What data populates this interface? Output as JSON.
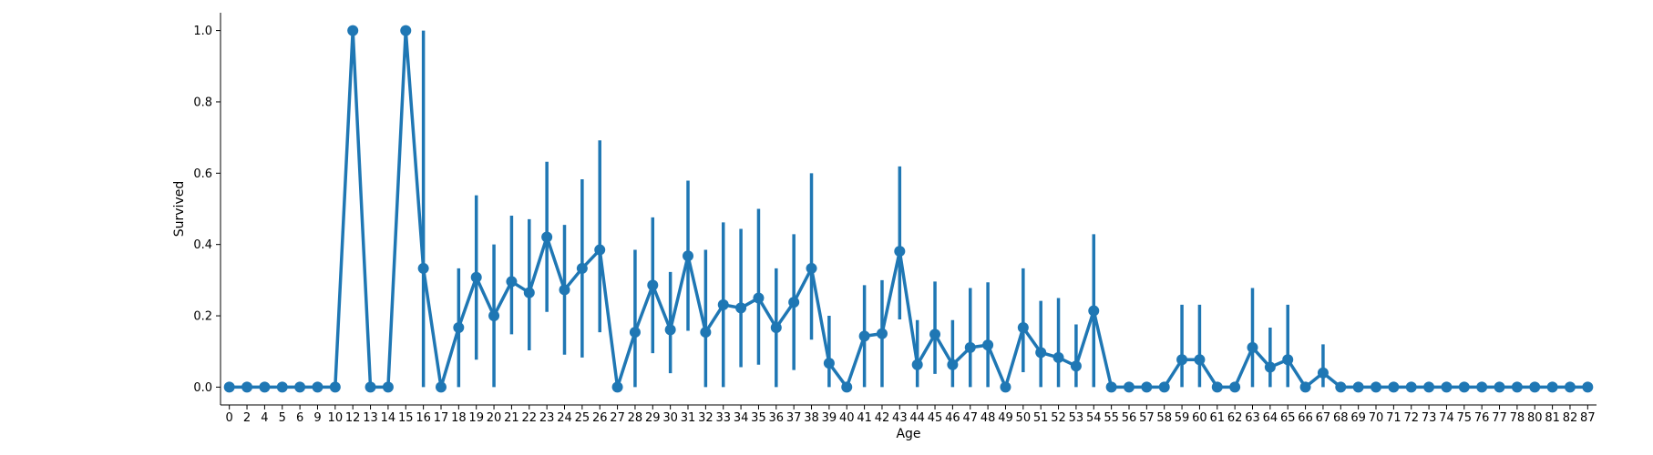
{
  "chart_data": {
    "type": "line",
    "title": "",
    "xlabel": "Age",
    "ylabel": "Survived",
    "ylim": [
      -0.05,
      1.05
    ],
    "yticks": [
      0.0,
      0.2,
      0.4,
      0.6,
      0.8,
      1.0
    ],
    "ytick_labels": [
      "0.0",
      "0.2",
      "0.4",
      "0.6",
      "0.8",
      "1.0"
    ],
    "grid": false,
    "legend": "none",
    "color": "#1f77b4",
    "categories": [
      "0",
      "2",
      "4",
      "5",
      "6",
      "9",
      "10",
      "12",
      "13",
      "14",
      "15",
      "16",
      "17",
      "18",
      "19",
      "20",
      "21",
      "22",
      "23",
      "24",
      "25",
      "26",
      "27",
      "28",
      "29",
      "30",
      "31",
      "32",
      "33",
      "34",
      "35",
      "36",
      "37",
      "38",
      "39",
      "40",
      "41",
      "42",
      "43",
      "44",
      "45",
      "46",
      "47",
      "48",
      "49",
      "50",
      "51",
      "52",
      "53",
      "54",
      "55",
      "56",
      "57",
      "58",
      "59",
      "60",
      "61",
      "62",
      "63",
      "64",
      "65",
      "66",
      "67",
      "68",
      "69",
      "70",
      "71",
      "72",
      "73",
      "74",
      "75",
      "76",
      "77",
      "78",
      "80",
      "81",
      "82",
      "87"
    ],
    "values": [
      0,
      0,
      0,
      0,
      0,
      0,
      0,
      1.0,
      0,
      0,
      1.0,
      0.333,
      0,
      0.167,
      0.308,
      0.2,
      0.296,
      0.265,
      0.421,
      0.273,
      0.333,
      0.385,
      0,
      0.154,
      0.286,
      0.161,
      0.368,
      0.154,
      0.231,
      0.222,
      0.25,
      0.167,
      0.238,
      0.333,
      0.067,
      0,
      0.143,
      0.15,
      0.381,
      0.063,
      0.148,
      0.063,
      0.111,
      0.118,
      0,
      0.167,
      0.097,
      0.083,
      0.059,
      0.214,
      0,
      0,
      0,
      0,
      0.077,
      0.077,
      0,
      0,
      0.111,
      0.056,
      0.077,
      0,
      0.04,
      0,
      0,
      0,
      0,
      0,
      0,
      0,
      0,
      0,
      0,
      0,
      0,
      0,
      0,
      0
    ],
    "ci_low": [
      0,
      0,
      0,
      0,
      0,
      0,
      0,
      1.0,
      0,
      0,
      1.0,
      0,
      0,
      0,
      0.077,
      0,
      0.148,
      0.103,
      0.211,
      0.091,
      0.083,
      0.154,
      0,
      0,
      0.095,
      0.039,
      0.158,
      0,
      0,
      0.056,
      0.063,
      0,
      0.048,
      0.133,
      0,
      0,
      0,
      0,
      0.19,
      0,
      0.037,
      0,
      0,
      0,
      0,
      0.042,
      0,
      0,
      0,
      0,
      0,
      0,
      0,
      0,
      0,
      0,
      0,
      0,
      0,
      0,
      0,
      0,
      0,
      0,
      0,
      0,
      0,
      0,
      0,
      0,
      0,
      0,
      0,
      0,
      0,
      0,
      0,
      0
    ],
    "ci_high": [
      0,
      0,
      0,
      0,
      0,
      0,
      0,
      1.0,
      0,
      0,
      1.0,
      1.0,
      0,
      0.333,
      0.538,
      0.4,
      0.481,
      0.471,
      0.632,
      0.455,
      0.583,
      0.692,
      0,
      0.385,
      0.476,
      0.323,
      0.579,
      0.385,
      0.462,
      0.444,
      0.5,
      0.333,
      0.429,
      0.6,
      0.2,
      0,
      0.286,
      0.3,
      0.619,
      0.188,
      0.296,
      0.188,
      0.278,
      0.294,
      0,
      0.333,
      0.242,
      0.25,
      0.176,
      0.429,
      0,
      0,
      0,
      0,
      0.231,
      0.231,
      0,
      0,
      0.278,
      0.167,
      0.231,
      0,
      0.12,
      0,
      0,
      0,
      0,
      0,
      0,
      0,
      0,
      0,
      0,
      0,
      0,
      0,
      0,
      0
    ]
  }
}
